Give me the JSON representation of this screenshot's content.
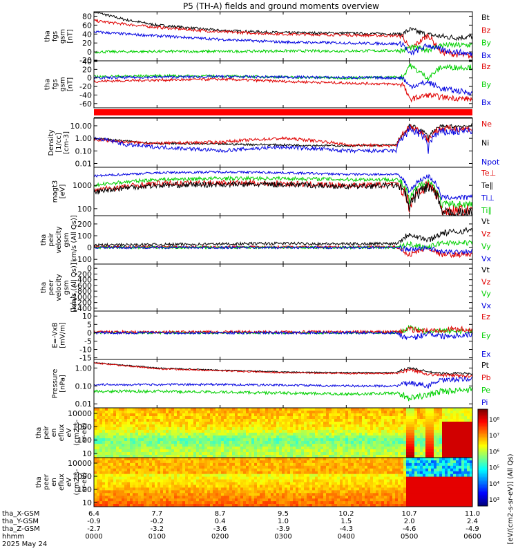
{
  "title": "P5 (TH-A) fields and ground moments overview",
  "colors": {
    "black": "#000000",
    "red": "#e00000",
    "green": "#00d000",
    "blue": "#0000e0",
    "marker": "#ff0000"
  },
  "time_axis": {
    "rows": [
      {
        "label": "tha_X-GSM",
        "values": [
          "6.4",
          "7.7",
          "8.7",
          "9.5",
          "10.2",
          "10.7",
          "11.0"
        ]
      },
      {
        "label": "tha_Y-GSM",
        "values": [
          "-0.9",
          "-0.2",
          "0.4",
          "1.0",
          "1.5",
          "2.0",
          "2.4"
        ]
      },
      {
        "label": "tha_Z-GSM",
        "values": [
          "-2.7",
          "-3.2",
          "-3.6",
          "-3.9",
          "-4.3",
          "-4.6",
          "-4.9"
        ]
      },
      {
        "label": "hhmm",
        "values": [
          "0000",
          "0100",
          "0200",
          "0300",
          "0400",
          "0500",
          "0600"
        ]
      }
    ],
    "date": "2025 May 24",
    "start_hour": 0,
    "end_hour": 6
  },
  "chart_data": [
    {
      "type": "line",
      "id": "fgs_gsm",
      "ylabel": [
        "tha",
        "fgs",
        "gsm",
        "[nT]"
      ],
      "yticks": [
        "80",
        "60",
        "40",
        "20",
        "0",
        "-20"
      ],
      "ylim": [
        -20,
        90
      ],
      "legend": [
        {
          "name": "Bt",
          "color": "black"
        },
        {
          "name": "Bz",
          "color": "red"
        },
        {
          "name": "By",
          "color": "green"
        },
        {
          "name": "Bx",
          "color": "blue"
        }
      ],
      "series": [
        {
          "name": "Bt",
          "color": "black",
          "x": [
            0,
            0.5,
            1,
            2,
            3,
            4,
            4.9,
            5,
            5.3,
            5.5,
            5.7,
            6
          ],
          "y": [
            90,
            72,
            60,
            48,
            43,
            42,
            40,
            50,
            38,
            35,
            32,
            34
          ],
          "noise": 3
        },
        {
          "name": "Bz",
          "color": "red",
          "x": [
            0,
            0.5,
            1,
            2,
            3,
            4,
            4.9,
            5,
            5.3,
            5.5,
            5.7,
            6
          ],
          "y": [
            70,
            62,
            55,
            45,
            40,
            38,
            36,
            5,
            38,
            0,
            -5,
            -10
          ],
          "noise": 3
        },
        {
          "name": "By",
          "color": "green",
          "x": [
            0,
            1,
            2,
            3,
            4,
            4.9,
            5,
            5.3,
            5.5,
            6
          ],
          "y": [
            0,
            1,
            1,
            2,
            2,
            3,
            10,
            5,
            15,
            15
          ],
          "noise": 3
        },
        {
          "name": "Bx",
          "color": "blue",
          "x": [
            0,
            0.5,
            1,
            2,
            3,
            4,
            4.9,
            5,
            5.3,
            5.5,
            6
          ],
          "y": [
            45,
            40,
            36,
            28,
            22,
            20,
            18,
            -5,
            15,
            5,
            -5
          ],
          "noise": 3
        }
      ]
    },
    {
      "type": "line",
      "id": "fgs_gsm_2",
      "ylabel": [
        "tha",
        "fgs",
        "gsm",
        "[nT]"
      ],
      "yticks": [
        "40",
        "20",
        "0",
        "-20",
        "-40",
        "-60"
      ],
      "ylim": [
        -70,
        40
      ],
      "legend": [
        {
          "name": "Bz",
          "color": "red"
        },
        {
          "name": "By",
          "color": "green"
        },
        {
          "name": "Bx",
          "color": "blue"
        }
      ],
      "series": [
        {
          "name": "Bz",
          "color": "red",
          "x": [
            0,
            1,
            2,
            3,
            4,
            4.9,
            5,
            5.3,
            5.5,
            6
          ],
          "y": [
            -8,
            -5,
            -3,
            -8,
            -12,
            -15,
            -50,
            -40,
            -45,
            -50
          ],
          "noise": 3
        },
        {
          "name": "By",
          "color": "green",
          "x": [
            0,
            1,
            2,
            3,
            4,
            4.9,
            5,
            5.3,
            5.5,
            6
          ],
          "y": [
            3,
            5,
            4,
            2,
            0,
            2,
            30,
            0,
            25,
            25
          ],
          "noise": 3
        },
        {
          "name": "Bx",
          "color": "blue",
          "x": [
            0,
            1,
            2,
            3,
            4,
            4.9,
            5,
            5.3,
            5.5,
            6
          ],
          "y": [
            0,
            2,
            3,
            2,
            1,
            0,
            -20,
            -10,
            -25,
            -35
          ],
          "noise": 3
        }
      ]
    },
    {
      "type": "line",
      "id": "density",
      "ylabel": [
        "Density",
        "[1/cc]",
        "[cm-3]"
      ],
      "log": true,
      "yticks": [
        "10.00",
        "1.00",
        "0.10",
        "0.01"
      ],
      "ylim": [
        0.005,
        40
      ],
      "legend": [
        {
          "name": "Ne",
          "color": "red"
        },
        {
          "name": "Ni",
          "color": "black"
        },
        {
          "name": "Npot",
          "color": "blue"
        }
      ],
      "series": [
        {
          "name": "Ni",
          "color": "black",
          "x": [
            0,
            0.5,
            1,
            2,
            3,
            4,
            4.8,
            4.95,
            5,
            5.3,
            5.5,
            6
          ],
          "y": [
            1,
            0.6,
            0.4,
            0.35,
            0.3,
            0.25,
            0.3,
            3,
            10,
            1,
            8,
            10
          ],
          "noise": 0.08,
          "lognoise": true
        },
        {
          "name": "Ne",
          "color": "red",
          "x": [
            0,
            0.5,
            1,
            2,
            3,
            4,
            4.8,
            4.95,
            5,
            5.3,
            5.5,
            6
          ],
          "y": [
            0.8,
            0.5,
            0.4,
            0.5,
            1,
            0.3,
            0.25,
            3,
            8,
            0.5,
            6,
            6
          ],
          "noise": 0.12,
          "lognoise": true
        },
        {
          "name": "Npot",
          "color": "blue",
          "x": [
            0,
            0.5,
            1,
            2,
            3,
            4,
            4.8,
            4.95,
            5,
            5.3,
            5.5,
            6
          ],
          "y": [
            1,
            0.3,
            0.2,
            0.1,
            0.2,
            0.1,
            0.1,
            2,
            5,
            0.1,
            3,
            4
          ],
          "noise": 0.15,
          "lognoise": true
        }
      ]
    },
    {
      "type": "line",
      "id": "temperature",
      "ylabel": [
        "magt3",
        "[eV]"
      ],
      "log": true,
      "yticks": [
        "1000",
        "100"
      ],
      "ylim": [
        50,
        6000
      ],
      "legend": [
        {
          "name": "Te⊥",
          "color": "red"
        },
        {
          "name": "Te∥",
          "color": "black"
        },
        {
          "name": "Ti⊥",
          "color": "blue"
        },
        {
          "name": "Ti∥",
          "color": "green"
        }
      ],
      "series": [
        {
          "name": "Ti⊥",
          "color": "blue",
          "x": [
            0,
            1,
            2,
            3,
            4,
            4.8,
            5,
            5.3,
            5.5,
            6
          ],
          "y": [
            2500,
            3500,
            3800,
            3500,
            3000,
            3000,
            500,
            2500,
            300,
            300
          ],
          "noise": 0.05,
          "lognoise": true
        },
        {
          "name": "Ti∥",
          "color": "green",
          "x": [
            0,
            1,
            2,
            3,
            4,
            4.8,
            5,
            5.3,
            5.5,
            6
          ],
          "y": [
            1000,
            1800,
            2000,
            2000,
            1800,
            1800,
            200,
            1500,
            150,
            150
          ],
          "noise": 0.08,
          "lognoise": true
        },
        {
          "name": "Te⊥",
          "color": "red",
          "x": [
            0,
            0.5,
            1,
            2,
            3,
            4,
            4.8,
            5,
            5.3,
            5.5,
            6
          ],
          "y": [
            600,
            900,
            1200,
            1300,
            1200,
            1000,
            1100,
            100,
            1000,
            80,
            80
          ],
          "noise": 0.12,
          "lognoise": true
        },
        {
          "name": "Te∥",
          "color": "black",
          "x": [
            0,
            0.5,
            1,
            2,
            3,
            4,
            4.8,
            5,
            5.3,
            5.5,
            6
          ],
          "y": [
            500,
            800,
            1000,
            1100,
            1100,
            900,
            1000,
            80,
            900,
            60,
            60
          ],
          "noise": 0.12,
          "lognoise": true
        }
      ]
    },
    {
      "type": "line",
      "id": "peir_velocity",
      "ylabel": [
        "tha",
        "peir",
        "velocity",
        "gsm",
        "[km/s (All Qs)]"
      ],
      "yticks": [
        "200",
        "100",
        "0",
        "-100"
      ],
      "ylim": [
        -140,
        270
      ],
      "legend": [
        {
          "name": "Vt",
          "color": "black"
        },
        {
          "name": "Vz",
          "color": "red"
        },
        {
          "name": "Vy",
          "color": "green"
        },
        {
          "name": "Vx",
          "color": "blue"
        }
      ],
      "series": [
        {
          "name": "Vt",
          "color": "black",
          "x": [
            0,
            1,
            2,
            3,
            4,
            4.8,
            5,
            5.3,
            5.5,
            6
          ],
          "y": [
            20,
            25,
            30,
            35,
            30,
            35,
            120,
            60,
            120,
            150
          ],
          "noise": 12
        },
        {
          "name": "Vz",
          "color": "red",
          "x": [
            0,
            1,
            2,
            3,
            4,
            4.8,
            5,
            5.3,
            5.5,
            6
          ],
          "y": [
            5,
            5,
            5,
            5,
            5,
            5,
            -60,
            0,
            -60,
            -60
          ],
          "noise": 10
        },
        {
          "name": "Vy",
          "color": "green",
          "x": [
            0,
            1,
            2,
            3,
            4,
            4.8,
            5,
            5.3,
            5.5,
            6
          ],
          "y": [
            0,
            0,
            0,
            0,
            0,
            0,
            30,
            0,
            40,
            40
          ],
          "noise": 10
        },
        {
          "name": "Vx",
          "color": "blue",
          "x": [
            0,
            1,
            2,
            3,
            4,
            4.8,
            5,
            5.3,
            5.5,
            6
          ],
          "y": [
            0,
            0,
            0,
            0,
            0,
            0,
            -20,
            0,
            -40,
            -30
          ],
          "noise": 10
        }
      ]
    },
    {
      "type": "line",
      "id": "peer_velocity",
      "ylabel": [
        "tha",
        "peer",
        "velocity",
        "gsm",
        "[km/s (All Qs)]"
      ],
      "yticks": [
        "0",
        "-200",
        "-400",
        "-600",
        "-800",
        "-1000",
        "-1200",
        "-1400"
      ],
      "ylim": [
        -1500,
        150
      ],
      "legend": [
        {
          "name": "Vt",
          "color": "black"
        },
        {
          "name": "Vz",
          "color": "red"
        },
        {
          "name": "Vy",
          "color": "green"
        },
        {
          "name": "Vx",
          "color": "blue"
        }
      ],
      "series": []
    },
    {
      "type": "line",
      "id": "efield",
      "ylabel": [
        "E=-VxB",
        "[mV/m]"
      ],
      "yticks": [
        "10",
        "5",
        "0",
        "-5",
        "-10",
        "-15"
      ],
      "ylim": [
        -16,
        13
      ],
      "legend": [
        {
          "name": "Ez",
          "color": "red"
        },
        {
          "name": "Ey",
          "color": "green"
        },
        {
          "name": "Ex",
          "color": "blue"
        }
      ],
      "series": [
        {
          "name": "Ey",
          "color": "green",
          "x": [
            0,
            1,
            2,
            3,
            4,
            4.8,
            5,
            5.3,
            5.5,
            6
          ],
          "y": [
            0,
            0,
            0,
            0,
            0,
            0,
            3,
            0,
            1,
            1
          ],
          "noise": 0.7
        },
        {
          "name": "Ez",
          "color": "red",
          "x": [
            0,
            1,
            2,
            3,
            4,
            4.8,
            5,
            5.3,
            5.5,
            6
          ],
          "y": [
            0.5,
            0.5,
            0.5,
            0.5,
            0.5,
            0.5,
            2,
            1,
            2,
            2
          ],
          "noise": 0.8
        },
        {
          "name": "Ex",
          "color": "blue",
          "x": [
            0,
            1,
            2,
            3,
            4,
            4.8,
            5,
            5.3,
            5.5,
            6
          ],
          "y": [
            0,
            0,
            0,
            0,
            0,
            0,
            -4,
            0,
            -2,
            -1
          ],
          "noise": 0.8
        }
      ]
    },
    {
      "type": "line",
      "id": "pressure",
      "ylabel": [
        "Pressure",
        "[nPa]"
      ],
      "log": true,
      "yticks": [
        "1.00",
        "0.10",
        "0.01"
      ],
      "ylim": [
        0.006,
        3
      ],
      "legend": [
        {
          "name": "Pt",
          "color": "black"
        },
        {
          "name": "Pb",
          "color": "red"
        },
        {
          "name": "Pe",
          "color": "green"
        },
        {
          "name": "Pi",
          "color": "blue"
        }
      ],
      "series": [
        {
          "name": "Pt",
          "color": "black",
          "x": [
            0,
            0.5,
            1,
            2,
            3,
            4,
            4.8,
            5,
            5.3,
            5.5,
            6
          ],
          "y": [
            2,
            1.4,
            1.0,
            0.75,
            0.6,
            0.55,
            0.55,
            1,
            0.6,
            0.5,
            0.5
          ],
          "noise": 0.03,
          "lognoise": true
        },
        {
          "name": "Pb",
          "color": "red",
          "x": [
            0,
            0.5,
            1,
            2,
            3,
            4,
            4.8,
            5,
            5.3,
            5.5,
            6
          ],
          "y": [
            1.9,
            1.3,
            0.9,
            0.7,
            0.55,
            0.5,
            0.5,
            0.8,
            0.45,
            0.4,
            0.35
          ],
          "noise": 0.04,
          "lognoise": true
        },
        {
          "name": "Pi",
          "color": "blue",
          "x": [
            0,
            1,
            2,
            3,
            4,
            4.8,
            5,
            5.3,
            5.5,
            6
          ],
          "y": [
            0.12,
            0.12,
            0.12,
            0.11,
            0.1,
            0.1,
            0.15,
            0.1,
            0.2,
            0.25
          ],
          "noise": 0.06,
          "lognoise": true
        },
        {
          "name": "Pe",
          "color": "green",
          "x": [
            0,
            1,
            2,
            3,
            4,
            4.8,
            5,
            5.3,
            5.5,
            6
          ],
          "y": [
            0.05,
            0.05,
            0.045,
            0.04,
            0.035,
            0.04,
            0.02,
            0.03,
            0.05,
            0.06
          ],
          "noise": 0.08,
          "lognoise": true
        }
      ]
    },
    {
      "type": "heatmap",
      "id": "peir_en_eflux",
      "ylabel": [
        "tha",
        "peir",
        "en",
        "eflux",
        "eV",
        "(cm2-s-",
        "sr-eV)"
      ],
      "yticks": [
        "10000",
        "1000",
        "100",
        "10"
      ]
    },
    {
      "type": "heatmap",
      "id": "peer_en_eflux",
      "ylabel": [
        "tha",
        "peer",
        "en",
        "eflux",
        "eV",
        "(cm2-s-",
        "sr-eV)"
      ],
      "yticks": [
        "10000",
        "1000",
        "100",
        "10"
      ]
    }
  ],
  "colorbar": {
    "title": "[eV/(cm2-s-sr-eV)] (All Qs)",
    "ticks": [
      "10⁸",
      "10⁷",
      "10⁶",
      "10⁵",
      "10⁴",
      "10³"
    ]
  }
}
